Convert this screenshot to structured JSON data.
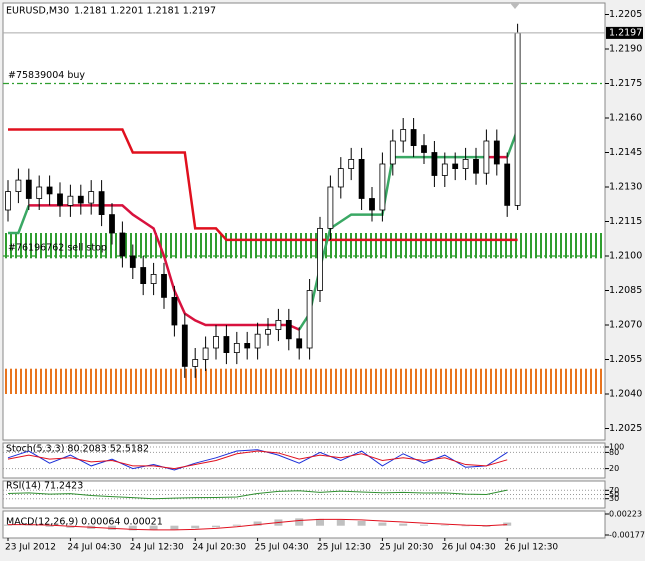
{
  "chart_data": [
    {
      "type": "candlestick",
      "title": "EURUSD,M30",
      "subtitle": "1.2181 1.2201 1.2181 1.2197",
      "categories": [
        "23 Jul 2012",
        null,
        null,
        null,
        null,
        null,
        "24 Jul 04:30",
        null,
        null,
        null,
        null,
        null,
        "24 Jul 12:30",
        null,
        null,
        null,
        null,
        null,
        "24 Jul 20:30",
        null,
        null,
        null,
        null,
        null,
        "25 Jul 04:30",
        null,
        null,
        null,
        null,
        null,
        "25 Jul 12:30",
        null,
        null,
        null,
        null,
        null,
        "25 Jul 20:30",
        null,
        null,
        null,
        null,
        null,
        "26 Jul 04:30",
        null,
        null,
        null,
        null,
        null,
        "26 Jul 12:30",
        null
      ],
      "open": [
        1.212,
        1.2128,
        1.2133,
        1.2125,
        1.213,
        1.2127,
        1.2122,
        1.2126,
        1.2123,
        1.2128,
        1.2118,
        1.211,
        1.21,
        1.2095,
        1.2088,
        1.2092,
        1.2082,
        1.207,
        1.2052,
        1.2055,
        1.206,
        1.2065,
        1.2058,
        1.2062,
        1.206,
        1.2066,
        1.2068,
        1.2072,
        1.2064,
        1.206,
        1.2085,
        1.2112,
        1.213,
        1.2138,
        1.2142,
        1.2125,
        1.212,
        1.214,
        1.215,
        1.2155,
        1.2148,
        1.2145,
        1.2135,
        1.214,
        1.2138,
        1.2142,
        1.2136,
        1.215,
        1.214,
        1.2122
      ],
      "high": [
        1.2133,
        1.2138,
        1.2138,
        1.2135,
        1.2135,
        1.2132,
        1.2131,
        1.2131,
        1.2133,
        1.2133,
        1.2123,
        1.2115,
        1.2105,
        1.21,
        1.2097,
        1.2097,
        1.2087,
        1.2075,
        1.206,
        1.2065,
        1.207,
        1.207,
        1.2067,
        1.2067,
        1.2071,
        1.2073,
        1.2077,
        1.2077,
        1.2069,
        1.209,
        1.2117,
        1.2135,
        1.2143,
        1.2147,
        1.2147,
        1.213,
        1.2145,
        1.2155,
        1.216,
        1.216,
        1.2153,
        1.215,
        1.2145,
        1.2145,
        1.2147,
        1.2147,
        1.2155,
        1.2155,
        1.2145,
        1.2201
      ],
      "low": [
        1.2115,
        1.2123,
        1.212,
        1.212,
        1.2122,
        1.2117,
        1.2117,
        1.2118,
        1.2118,
        1.2113,
        1.2105,
        1.2095,
        1.209,
        1.2083,
        1.2083,
        1.2077,
        1.2065,
        1.2047,
        1.2047,
        1.205,
        1.2055,
        1.2053,
        1.2053,
        1.2055,
        1.2055,
        1.2061,
        1.2063,
        1.2059,
        1.2055,
        1.2055,
        1.208,
        1.2107,
        1.2125,
        1.2133,
        1.212,
        1.2115,
        1.2115,
        1.2135,
        1.2145,
        1.2143,
        1.214,
        1.213,
        1.213,
        1.2133,
        1.2133,
        1.2131,
        1.2131,
        1.2135,
        1.2117,
        1.212
      ],
      "close": [
        1.2128,
        1.2133,
        1.2125,
        1.213,
        1.2127,
        1.2122,
        1.2126,
        1.2123,
        1.2128,
        1.2118,
        1.211,
        1.21,
        1.2095,
        1.2088,
        1.2092,
        1.2082,
        1.207,
        1.2052,
        1.2055,
        1.206,
        1.2065,
        1.2058,
        1.2062,
        1.206,
        1.2066,
        1.2068,
        1.2072,
        1.2064,
        1.206,
        1.2085,
        1.2112,
        1.213,
        1.2138,
        1.2142,
        1.2125,
        1.212,
        1.214,
        1.215,
        1.2155,
        1.2148,
        1.2145,
        1.2135,
        1.214,
        1.2138,
        1.2142,
        1.2136,
        1.215,
        1.214,
        1.2122,
        1.2197
      ],
      "series": [
        {
          "color": "#e0101e",
          "values": [
            1.2155,
            1.2155,
            1.2155,
            1.2155,
            1.2155,
            1.2155,
            1.2155,
            1.2155,
            1.2155,
            1.2155,
            1.2155,
            1.2155,
            1.2145,
            1.2145,
            1.2145,
            1.2145,
            1.2145,
            1.2145,
            1.2112,
            1.2112,
            1.2112,
            1.2107,
            1.2107,
            1.2107,
            1.2107,
            1.2107,
            1.2107,
            1.2107,
            1.2107,
            1.2107,
            1.2107,
            1.2107,
            1.2107,
            1.2107,
            1.2107,
            1.2107,
            1.2107,
            1.2107,
            1.2107,
            1.2107,
            1.2107,
            1.2107,
            1.2107,
            1.2107,
            1.2107,
            1.2107,
            1.2107,
            1.2107,
            1.2107,
            1.2107
          ]
        },
        {
          "color": "#d8123e",
          "values": [
            null,
            null,
            1.2122,
            1.2122,
            1.2122,
            1.2122,
            1.2122,
            1.2122,
            1.2122,
            1.2122,
            1.2122,
            1.2122,
            1.2118,
            1.2115,
            1.2112,
            1.21,
            1.2085,
            1.2075,
            1.2072,
            1.207,
            1.207,
            1.207,
            1.207,
            1.207,
            1.207,
            1.207,
            1.207,
            1.207,
            1.2068,
            null,
            null,
            null,
            null,
            null,
            null,
            null,
            null,
            null,
            null,
            null,
            null,
            null,
            null,
            null,
            null,
            null,
            1.2143,
            1.2143,
            1.2143,
            null
          ]
        },
        {
          "color": "#3aa864",
          "values": [
            1.211,
            1.211,
            1.2122,
            null,
            null,
            null,
            null,
            null,
            null,
            null,
            null,
            null,
            null,
            null,
            null,
            null,
            null,
            null,
            null,
            null,
            null,
            null,
            null,
            null,
            null,
            null,
            null,
            null,
            1.2068,
            1.2075,
            1.2095,
            1.2112,
            1.2115,
            1.2118,
            1.2118,
            1.2118,
            1.2118,
            1.2143,
            1.2143,
            1.2143,
            1.2143,
            1.2143,
            1.2143,
            1.2143,
            1.2143,
            1.2143,
            1.2143,
            null,
            null,
            null
          ]
        },
        {
          "color": "#3aa864",
          "values": [
            null,
            null,
            null,
            null,
            null,
            null,
            null,
            null,
            null,
            null,
            null,
            null,
            null,
            null,
            null,
            null,
            null,
            null,
            null,
            null,
            null,
            null,
            null,
            null,
            null,
            null,
            null,
            null,
            null,
            null,
            null,
            null,
            null,
            null,
            null,
            null,
            null,
            null,
            null,
            null,
            null,
            null,
            null,
            null,
            null,
            null,
            null,
            null,
            1.2143,
            1.2155
          ]
        }
      ],
      "levels": [
        {
          "label": "#75839004 buy",
          "value": 1.2175,
          "color": "#2f9e2f"
        },
        {
          "label": "#76196762 sell stop",
          "value": 1.21,
          "color": "#2f9e2f"
        }
      ],
      "zones": [
        {
          "from": 1.2099,
          "to": 1.211,
          "color": "#2f9e2f"
        },
        {
          "from": 1.204,
          "to": 1.2051,
          "color": "#e8741e"
        }
      ],
      "ylim": [
        1.202,
        1.221
      ],
      "yticks": [
        1.2205,
        {
          "value": 1.219,
          "label": "1.2190"
        },
        1.2175,
        {
          "value": 1.216,
          "label": "1.2160"
        },
        1.2145,
        {
          "value": 1.213,
          "label": "1.2130"
        },
        1.2115,
        {
          "value": 1.21,
          "label": "1.2100"
        },
        1.2085,
        {
          "value": 1.207,
          "label": "1.2070"
        },
        1.2055,
        {
          "value": 1.204,
          "label": "1.2040"
        },
        1.2025
      ]
    },
    {
      "type": "line",
      "title": "Stoch(5,3,3) 80.2083 52.5182",
      "ylim": [
        0,
        100
      ],
      "yticks": [
        20,
        80,
        100
      ],
      "series": [
        {
          "color": "#1c2fd8",
          "values": [
            60,
            85,
            40,
            70,
            30,
            55,
            20,
            35,
            15,
            40,
            60,
            85,
            90,
            70,
            40,
            80,
            50,
            85,
            30,
            75,
            40,
            70,
            25,
            30,
            80
          ]
        },
        {
          "color": "#e0101e",
          "values": [
            55,
            70,
            55,
            60,
            45,
            50,
            30,
            30,
            20,
            35,
            50,
            75,
            85,
            78,
            55,
            70,
            60,
            75,
            50,
            60,
            50,
            60,
            35,
            30,
            52.5
          ]
        }
      ]
    },
    {
      "type": "line",
      "title": "RSI(14) 71.2423",
      "ylim": [
        0,
        100
      ],
      "yticks": [
        30,
        50,
        70
      ],
      "series": [
        {
          "color": "#2f8f2f",
          "values": [
            55,
            58,
            52,
            54,
            45,
            40,
            35,
            30,
            33,
            35,
            36,
            38,
            55,
            65,
            68,
            60,
            66,
            62,
            58,
            60,
            57,
            58,
            52,
            50,
            71
          ]
        }
      ]
    },
    {
      "type": "macd",
      "title": "MACD(12,26,9) 0.00064 0.00021",
      "ylim": [
        -0.00177,
        0.00223
      ],
      "yticks": [
        0.00223,
        -0.00177
      ],
      "values": [
        0.0002,
        0.0001,
        -0.0002,
        -0.0004,
        -0.0006,
        -0.0008,
        -0.0009,
        -0.0008,
        -0.0007,
        -0.0005,
        -0.0003,
        0.0002,
        0.0008,
        0.0012,
        0.0014,
        0.0013,
        0.0011,
        0.0009,
        0.0006,
        0.0004,
        0.0002,
        0.0001,
        -0.0001,
        -0.0002,
        0.0006
      ],
      "series": [
        {
          "color": "#e0101e",
          "values": [
            0.0002,
            0.0002,
            0.0001,
            -0.0001,
            -0.0003,
            -0.0005,
            -0.0007,
            -0.0008,
            -0.0008,
            -0.0007,
            -0.0005,
            -0.0002,
            0.0002,
            0.0006,
            0.001,
            0.0012,
            0.0012,
            0.0011,
            0.0009,
            0.0007,
            0.0005,
            0.0003,
            0.0001,
            0.0,
            0.0002
          ]
        }
      ]
    }
  ]
}
